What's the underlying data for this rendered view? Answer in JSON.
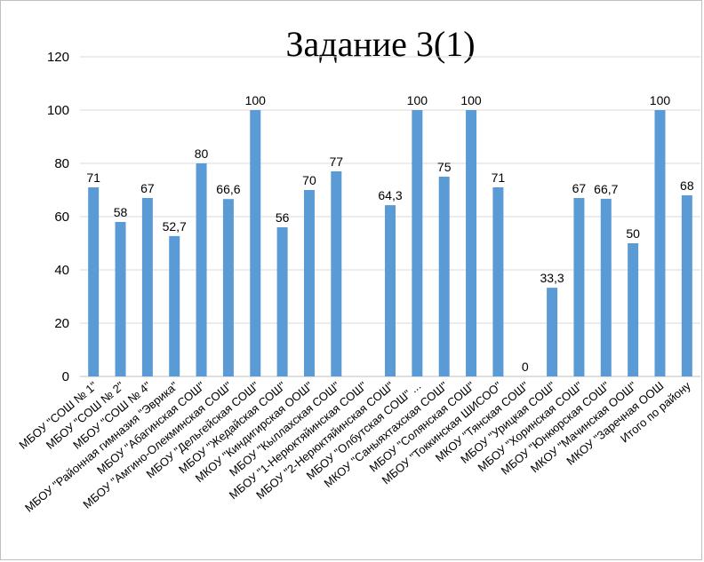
{
  "chart_data": {
    "type": "bar",
    "title": "Задание 3(1)",
    "xlabel": "",
    "ylabel": "",
    "ylim": [
      0,
      120
    ],
    "yticks": [
      0,
      20,
      40,
      60,
      80,
      100,
      120
    ],
    "grid": true,
    "legend": "none",
    "bar_color": "#5b9bd5",
    "grid_color": "#d9d9d9",
    "categories": [
      "МБОУ \"СОШ  № 1\"",
      "МБОУ \"СОШ № 2\"",
      "МБОУ \"СОШ № 4\"",
      "МБОУ \"Районная гимназия \"Эврика\"",
      "МБОУ \"Абагинская СОШ\"",
      "МБОУ \"Амгино-Олекминская СОШ\"",
      "МБОУ \"Дельгейская СОШ\"",
      "МБОУ \"Жедайская СОШ\"",
      "МКОУ \"Киндигирская ООШ\"",
      "МБОУ \"Кыллахская СОШ\"",
      "МБОУ \"1-Нерюктяйинская СОШ\"",
      "МБОУ \"2-Нерюктяйинская СОШ\"",
      "МБОУ \"Олбутская СОШ\" ...",
      "МКОУ \"Саныяхтахская СОШ\"",
      "МБОУ \"Солянская СОШ\"",
      "МБОУ \"Токкинская ШИСОО\"",
      "МКОУ \"Тянская СОШ\"",
      "МБОУ \"Урицкая СОШ\"",
      "МБОУ \"Хоринская СОШ\"",
      "МБОУ \"Юнкюрская СОШ\"",
      "МКОУ \"Мачинская ООШ\"",
      "МКОУ \"Заречная ООШ",
      "Итого по району"
    ],
    "values": [
      71,
      58,
      67,
      52.7,
      80,
      66.6,
      100,
      56,
      70,
      77,
      null,
      64.3,
      100,
      75,
      100,
      71,
      0,
      33.3,
      67,
      66.7,
      50,
      100,
      68
    ],
    "value_labels": [
      "71",
      "58",
      "67",
      "52,7",
      "80",
      "66,6",
      "100",
      "56",
      "70",
      "77",
      "",
      "64,3",
      "100",
      "75",
      "100",
      "71",
      "0",
      "33,3",
      "67",
      "66,7",
      "50",
      "100",
      "68"
    ]
  }
}
